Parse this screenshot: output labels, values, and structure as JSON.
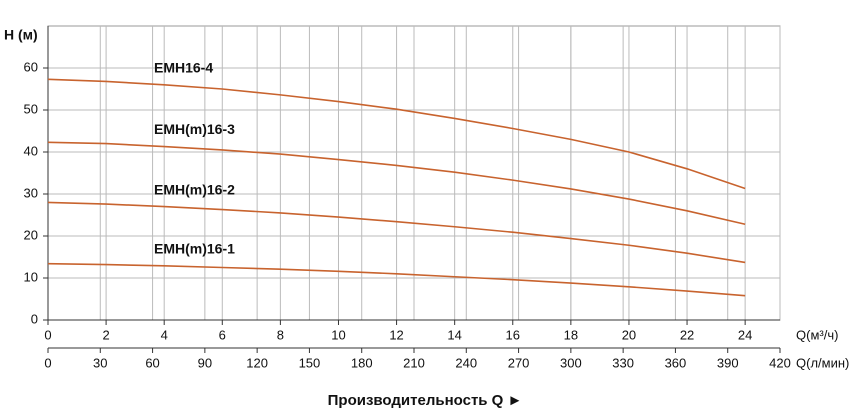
{
  "chart_data": {
    "type": "line",
    "ylabel": "H (м)",
    "xlabel": "Производительность Q  ►",
    "x_axis_label": "Q(м³/ч)",
    "x2_axis_label": "Q(л/мин)",
    "x": [
      0,
      2,
      4,
      6,
      8,
      10,
      12,
      14,
      16,
      18,
      20,
      22,
      24
    ],
    "series": [
      {
        "name": "EMH16-4",
        "color": "#c8632e",
        "values": [
          57.3,
          56.8,
          56,
          55,
          53.6,
          52,
          50.2,
          48,
          45.6,
          43,
          40,
          36,
          31.3
        ]
      },
      {
        "name": "EMH(m)16-3",
        "color": "#c8632e",
        "values": [
          42.3,
          42,
          41.3,
          40.5,
          39.5,
          38.2,
          36.8,
          35.2,
          33.3,
          31.2,
          28.8,
          26,
          22.8
        ]
      },
      {
        "name": "EMH(m)16-2",
        "color": "#c8632e",
        "values": [
          28,
          27.6,
          27,
          26.3,
          25.5,
          24.5,
          23.4,
          22.2,
          20.9,
          19.4,
          17.8,
          15.9,
          13.7
        ]
      },
      {
        "name": "EMH(m)16-1",
        "color": "#c8632e",
        "values": [
          13.4,
          13.2,
          12.9,
          12.5,
          12.1,
          11.6,
          11,
          10.3,
          9.6,
          8.8,
          7.9,
          6.9,
          5.8
        ]
      }
    ],
    "xlim": [
      0,
      25.2
    ],
    "xticks": [
      0,
      2,
      4,
      6,
      8,
      10,
      12,
      14,
      16,
      18,
      20,
      22,
      24
    ],
    "x2lim": [
      0,
      420
    ],
    "x2ticks": [
      0,
      30,
      60,
      90,
      120,
      150,
      180,
      210,
      240,
      270,
      300,
      330,
      360,
      390,
      420
    ],
    "ylim": [
      0,
      70
    ],
    "yticks": [
      0,
      10,
      20,
      30,
      40,
      50,
      60
    ],
    "grid": true
  }
}
